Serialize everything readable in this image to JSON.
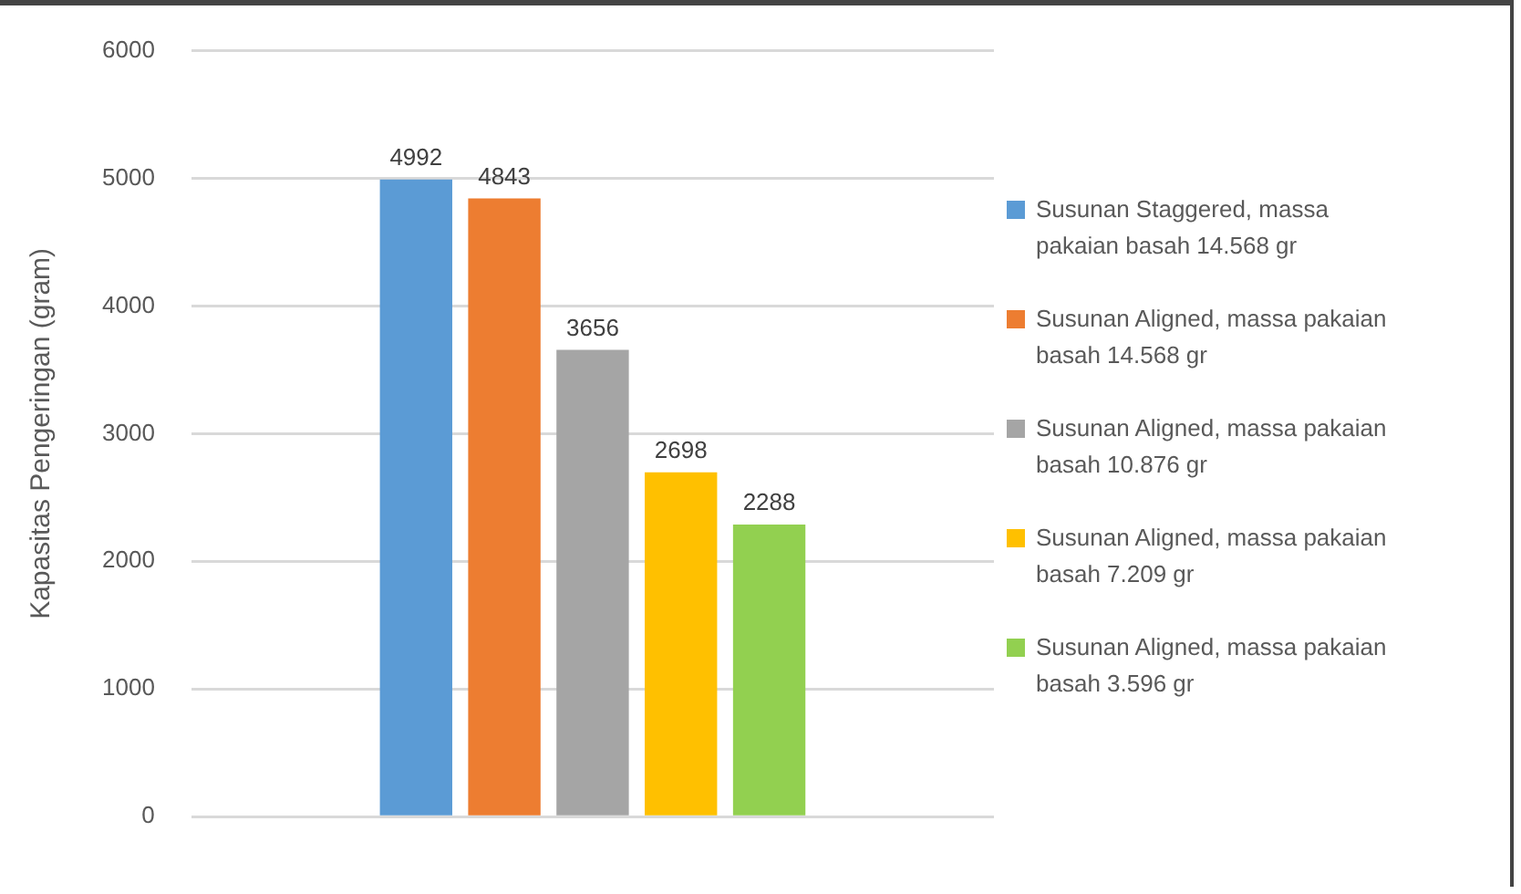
{
  "chart_data": {
    "type": "bar",
    "ylabel": "Kapasitas Pengeringan (gram)",
    "categories": [
      null
    ],
    "series": [
      {
        "name": "Susunan Staggered, massa pakaian basah 14.568 gr",
        "color": "#5b9bd5",
        "values": [
          4992
        ]
      },
      {
        "name": "Susunan Aligned, massa pakaian basah 14.568 gr",
        "color": "#ed7d31",
        "values": [
          4843
        ]
      },
      {
        "name": "Susunan Aligned, massa pakaian basah 10.876 gr",
        "color": "#a5a5a5",
        "values": [
          3656
        ]
      },
      {
        "name": "Susunan Aligned, massa pakaian basah 7.209 gr",
        "color": "#ffc000",
        "values": [
          2698
        ]
      },
      {
        "name": "Susunan Aligned, massa pakaian basah 3.596 gr",
        "color": "#92d050",
        "values": [
          2288
        ]
      }
    ],
    "ylim": [
      0,
      6000
    ],
    "yticks": [
      0,
      1000,
      2000,
      3000,
      4000,
      5000,
      6000
    ],
    "grid": "y",
    "legend": "right",
    "data_labels": true
  }
}
